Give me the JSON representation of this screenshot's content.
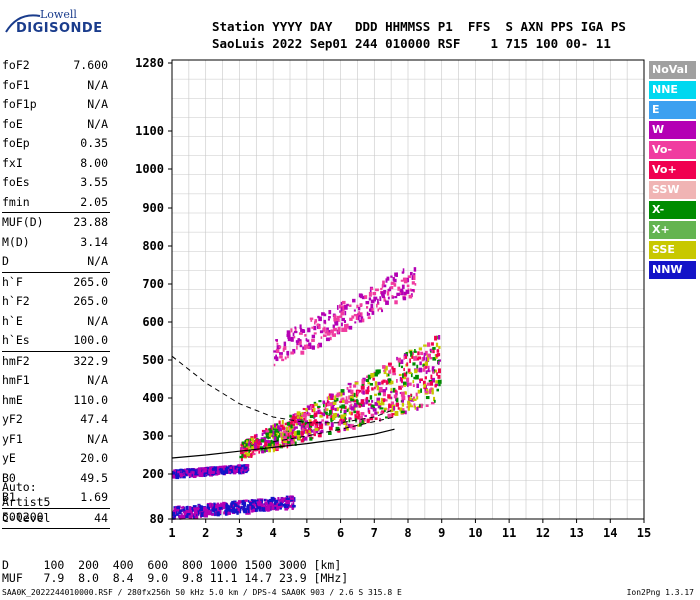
{
  "logo": {
    "line1": "Lowell",
    "line2": "DIGISONDE"
  },
  "header": {
    "line1": "Station YYYY DAY   DDD HHMMSS P1  FFS  S AXN PPS IGA PS",
    "line2": "SaoLuis 2022 Sep01 244 010000 RSF    1 715 100 00- 11"
  },
  "params": {
    "group1": [
      {
        "label": "foF2",
        "value": "7.600"
      },
      {
        "label": "foF1",
        "value": "N/A"
      },
      {
        "label": "foF1p",
        "value": "N/A"
      },
      {
        "label": "foE",
        "value": "N/A"
      },
      {
        "label": "foEp",
        "value": "0.35"
      },
      {
        "label": "fxI",
        "value": "8.00"
      },
      {
        "label": "foEs",
        "value": "3.55"
      },
      {
        "label": "fmin",
        "value": "2.05"
      }
    ],
    "group2": [
      {
        "label": "MUF(D)",
        "value": "23.88"
      },
      {
        "label": "M(D)",
        "value": "3.14"
      },
      {
        "label": "D",
        "value": "N/A"
      }
    ],
    "group3": [
      {
        "label": "h`F",
        "value": "265.0"
      },
      {
        "label": "h`F2",
        "value": "265.0"
      },
      {
        "label": "h`E",
        "value": "N/A"
      },
      {
        "label": "h`Es",
        "value": "100.0"
      }
    ],
    "group4": [
      {
        "label": "hmF2",
        "value": "322.9"
      },
      {
        "label": "hmF1",
        "value": "N/A"
      },
      {
        "label": "hmE",
        "value": "110.0"
      },
      {
        "label": "yF2",
        "value": "47.4"
      },
      {
        "label": "yF1",
        "value": "N/A"
      },
      {
        "label": "yE",
        "value": "20.0"
      },
      {
        "label": "B0",
        "value": "49.5"
      },
      {
        "label": "B1",
        "value": "1.69"
      }
    ],
    "group5": [
      {
        "label": "C-level",
        "value": "44"
      }
    ]
  },
  "auto": {
    "line1": "Auto:",
    "line2": "Artist5",
    "line3": "500200"
  },
  "dmuf": {
    "line1": "D     100  200  400  600  800 1000 1500 3000 [km]",
    "line2": "MUF   7.9  8.0  8.4  9.0  9.8 11.1 14.7 23.9 [MHz]"
  },
  "footer": "SAA0K_2022244010000.RSF / 280fx256h 50 kHz 5.0 km / DPS-4 SAA0K 903 / 2.6 S 315.8 E",
  "version": "Ion2Png 1.3.17",
  "legend": [
    {
      "label": "NoVal",
      "color": "#a0a0a0"
    },
    {
      "label": "NNE",
      "color": "#00d8f0"
    },
    {
      "label": "E",
      "color": "#3ca0f0"
    },
    {
      "label": "W",
      "color": "#b400b4"
    },
    {
      "label": "Vo-",
      "color": "#f03ca0"
    },
    {
      "label": "Vo+",
      "color": "#f00050"
    },
    {
      "label": "SSW",
      "color": "#f0b4b4"
    },
    {
      "label": "X-",
      "color": "#008c00"
    },
    {
      "label": "X+",
      "color": "#64b450"
    },
    {
      "label": "SSE",
      "color": "#c8c800"
    },
    {
      "label": "NNW",
      "color": "#1414c8"
    }
  ],
  "chart_data": {
    "type": "scatter",
    "x_ticks": [
      "1",
      "2",
      "3",
      "4",
      "5",
      "6",
      "7",
      "8",
      "9",
      "10",
      "11",
      "12",
      "13",
      "14",
      "15"
    ],
    "y_ticks": [
      "80",
      "200",
      "300",
      "400",
      "500",
      "600",
      "700",
      "800",
      "900",
      "1000",
      "1100",
      "1280"
    ],
    "xlim": [
      1,
      15
    ],
    "ylim": [
      80,
      1280
    ],
    "grid": true,
    "legend_position": "right",
    "curves": {
      "solid_profile": [
        [
          1,
          242
        ],
        [
          2,
          250
        ],
        [
          3,
          260
        ],
        [
          4,
          270
        ],
        [
          5,
          280
        ],
        [
          6,
          292
        ],
        [
          7,
          305
        ],
        [
          7.6,
          318
        ]
      ],
      "dashed_upper": [
        [
          1,
          510
        ],
        [
          2,
          440
        ],
        [
          3,
          385
        ],
        [
          4,
          350
        ],
        [
          5,
          335
        ],
        [
          6,
          335
        ],
        [
          7,
          350
        ],
        [
          7.6,
          370
        ]
      ],
      "dashed_lower": [
        [
          4,
          285
        ],
        [
          5,
          300
        ],
        [
          6,
          318
        ],
        [
          7,
          338
        ],
        [
          7.6,
          350
        ]
      ]
    },
    "traces": [
      {
        "name": "Es",
        "x": [
          1,
          4.6
        ],
        "y": [
          100,
          130
        ],
        "colors": [
          "#1414c8",
          "#b400b4"
        ]
      },
      {
        "name": "F-base",
        "x": [
          1,
          3.2
        ],
        "y": [
          205,
          220
        ],
        "colors": [
          "#1414c8",
          "#b400b4"
        ]
      },
      {
        "name": "F2",
        "x": [
          3,
          8.9
        ],
        "y": [
          265,
          480
        ],
        "colors": [
          "#b400b4",
          "#f03ca0",
          "#f00050",
          "#008c00",
          "#c8c800"
        ]
      },
      {
        "name": "F2-2hop",
        "x": [
          4,
          8.2
        ],
        "y": [
          520,
          720
        ],
        "colors": [
          "#b400b4",
          "#f03ca0"
        ]
      }
    ]
  }
}
